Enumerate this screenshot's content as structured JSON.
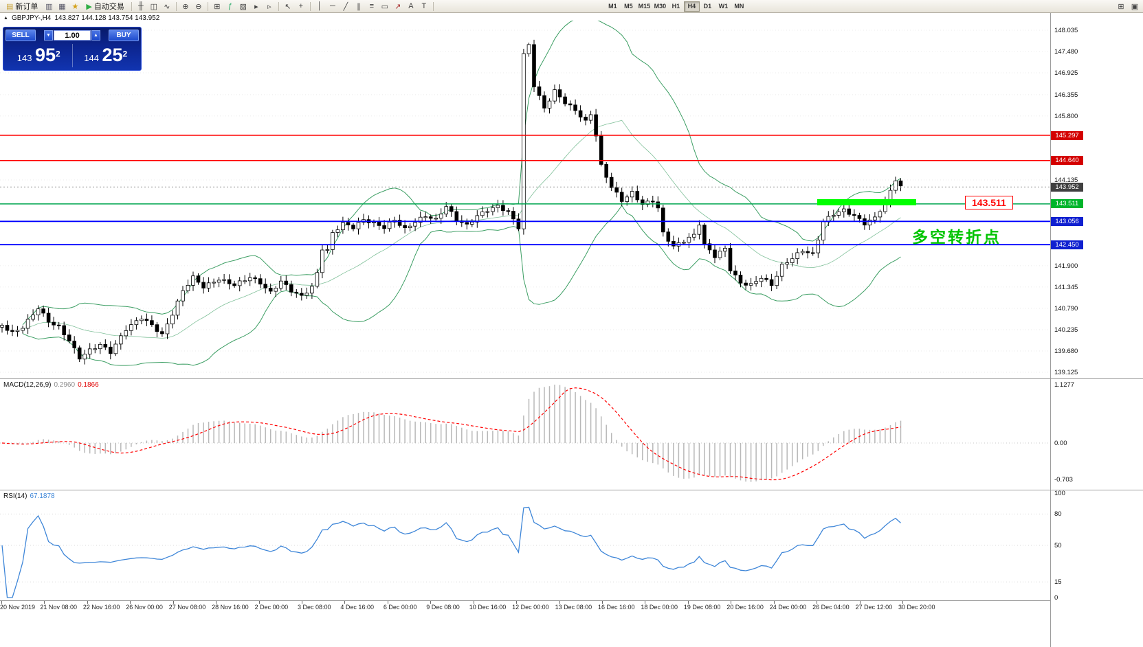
{
  "toolbar": {
    "new_order_label": "新订单",
    "new_order_icon": {
      "name": "new-order-icon",
      "glyph": "▤",
      "color": "#caa53c"
    },
    "autotrade_label": "自动交易",
    "autotrade_icon": {
      "name": "autotrade-play-icon",
      "glyph": "▶",
      "color": "#2eae44"
    },
    "icons_a": [
      {
        "name": "market-watch-icon",
        "glyph": "▥",
        "color": "#556"
      },
      {
        "name": "data-window-icon",
        "glyph": "▦",
        "color": "#556"
      },
      {
        "name": "navigator-icon",
        "glyph": "★",
        "color": "#d4a017"
      }
    ],
    "icons_b": [
      {
        "name": "bar-chart-icon",
        "glyph": "╫"
      },
      {
        "name": "candlestick-chart-icon",
        "glyph": "◫"
      },
      {
        "name": "line-chart-icon",
        "glyph": "∿"
      },
      "sep",
      {
        "name": "zoom-in-icon",
        "glyph": "⊕"
      },
      {
        "name": "zoom-out-icon",
        "glyph": "⊖"
      },
      "sep",
      {
        "name": "tile-windows-icon",
        "glyph": "⊞"
      },
      {
        "name": "indicators-icon",
        "glyph": "ƒ",
        "color": "#2a6"
      },
      {
        "name": "templates-icon",
        "glyph": "▨"
      },
      {
        "name": "auto-scroll-icon",
        "glyph": "▸"
      },
      {
        "name": "chart-shift-icon",
        "glyph": "▹"
      },
      "sep",
      {
        "name": "cursor-icon",
        "glyph": "↖"
      },
      {
        "name": "crosshair-icon",
        "glyph": "+"
      },
      "sep",
      {
        "name": "vertical-line-icon",
        "glyph": "│"
      },
      {
        "name": "horizontal-line-icon",
        "glyph": "─"
      },
      {
        "name": "trendline-icon",
        "glyph": "╱"
      },
      {
        "name": "equidistant-channel-icon",
        "glyph": "∥"
      },
      {
        "name": "fibonacci-icon",
        "glyph": "≡"
      },
      {
        "name": "shapes-icon",
        "glyph": "▭"
      },
      {
        "name": "arrows-icon",
        "glyph": "↗",
        "color": "#a33"
      },
      {
        "name": "text-icon",
        "glyph": "A"
      },
      {
        "name": "text-label-icon",
        "glyph": "T"
      }
    ],
    "timeframes": [
      "M1",
      "M5",
      "M15",
      "M30",
      "H1",
      "H4",
      "D1",
      "W1",
      "MN"
    ],
    "active_timeframe": "H4",
    "icons_right": [
      {
        "name": "new-chart-icon",
        "glyph": "⊞"
      },
      {
        "name": "window-arrange-icon",
        "glyph": "▣"
      }
    ]
  },
  "quote": {
    "symbol": "GBPJPY-,H4",
    "ohlc": "143.827 144.128 143.754 143.952"
  },
  "trade_panel": {
    "sell_label": "SELL",
    "buy_label": "BUY",
    "volume": "1.00",
    "volume_down_glyph": "▼",
    "volume_up_glyph": "▲",
    "sell_price": {
      "prefix": "143",
      "big": "95",
      "sup": "2"
    },
    "buy_price": {
      "prefix": "144",
      "big": "25",
      "sup": "2"
    }
  },
  "chart_data": {
    "type": "candlestick",
    "symbol": "GBPJPY-",
    "timeframe": "H4",
    "candle_count": 175,
    "y_tick_values": [
      148.035,
      147.48,
      146.925,
      146.355,
      145.8,
      144.135,
      141.9,
      141.345,
      140.79,
      140.235,
      139.68,
      139.125
    ],
    "price_badges": [
      {
        "value": 145.297,
        "color": "#d40000"
      },
      {
        "value": 144.64,
        "color": "#d40000"
      },
      {
        "value": 143.952,
        "color": "#404040"
      },
      {
        "value": 143.511,
        "color": "#00b42a"
      },
      {
        "value": 143.056,
        "color": "#1020d0"
      },
      {
        "value": 142.45,
        "color": "#1020d0"
      }
    ],
    "h_lines": [
      {
        "value": 145.297,
        "color": "#ff0000",
        "width": 1.5
      },
      {
        "value": 144.64,
        "color": "#ff0000",
        "width": 1.5
      },
      {
        "value": 143.511,
        "color": "#00a651",
        "width": 1.5
      },
      {
        "value": 143.056,
        "color": "#0000ff",
        "width": 1.8
      },
      {
        "value": 142.45,
        "color": "#0000ff",
        "width": 1.8
      }
    ],
    "current_price": 143.952,
    "highlight_zone": {
      "value": 143.511,
      "x_start_frac": 0.778,
      "x_end_frac": 0.872,
      "color": "#00ff00"
    },
    "annotations": [
      {
        "name": "price-callout",
        "text": "143.511",
        "x": 1404,
        "y": 285,
        "style": "red-box"
      },
      {
        "name": "pivot-note",
        "text": "多空转折点",
        "x": 1327,
        "y": 326,
        "style": "green-text"
      }
    ],
    "close_anchors": [
      [
        0,
        140.35
      ],
      [
        2,
        140.15
      ],
      [
        4,
        140.3
      ],
      [
        7,
        140.8
      ],
      [
        9,
        140.45
      ],
      [
        11,
        140.3
      ],
      [
        13,
        139.95
      ],
      [
        15,
        139.5
      ],
      [
        17,
        139.7
      ],
      [
        19,
        139.85
      ],
      [
        21,
        139.65
      ],
      [
        24,
        140.25
      ],
      [
        27,
        140.55
      ],
      [
        29,
        140.35
      ],
      [
        31,
        140.1
      ],
      [
        33,
        140.65
      ],
      [
        35,
        141.25
      ],
      [
        37,
        141.6
      ],
      [
        39,
        141.35
      ],
      [
        42,
        141.55
      ],
      [
        45,
        141.4
      ],
      [
        48,
        141.6
      ],
      [
        50,
        141.45
      ],
      [
        52,
        141.2
      ],
      [
        54,
        141.5
      ],
      [
        56,
        141.25
      ],
      [
        58,
        141.1
      ],
      [
        60,
        141.35
      ],
      [
        61,
        141.7
      ],
      [
        62,
        142.35
      ],
      [
        63,
        142.3
      ],
      [
        64,
        142.75
      ],
      [
        66,
        143.0
      ],
      [
        68,
        142.9
      ],
      [
        70,
        143.1
      ],
      [
        72,
        143.0
      ],
      [
        74,
        142.9
      ],
      [
        76,
        143.1
      ],
      [
        78,
        142.85
      ],
      [
        80,
        143.05
      ],
      [
        82,
        143.2
      ],
      [
        84,
        143.1
      ],
      [
        86,
        143.45
      ],
      [
        88,
        143.1
      ],
      [
        90,
        142.95
      ],
      [
        92,
        143.2
      ],
      [
        94,
        143.35
      ],
      [
        96,
        143.45
      ],
      [
        98,
        143.3
      ],
      [
        100,
        142.9
      ],
      [
        101,
        147.4
      ],
      [
        102,
        147.65
      ],
      [
        103,
        146.6
      ],
      [
        105,
        146.0
      ],
      [
        107,
        146.45
      ],
      [
        109,
        146.15
      ],
      [
        111,
        145.95
      ],
      [
        113,
        145.65
      ],
      [
        114,
        145.85
      ],
      [
        115,
        145.3
      ],
      [
        116,
        144.5
      ],
      [
        118,
        143.95
      ],
      [
        120,
        143.6
      ],
      [
        122,
        143.8
      ],
      [
        124,
        143.5
      ],
      [
        126,
        143.6
      ],
      [
        127,
        143.4
      ],
      [
        128,
        142.75
      ],
      [
        130,
        142.4
      ],
      [
        132,
        142.55
      ],
      [
        134,
        142.7
      ],
      [
        135,
        143.0
      ],
      [
        136,
        142.45
      ],
      [
        138,
        142.15
      ],
      [
        140,
        142.35
      ],
      [
        141,
        141.8
      ],
      [
        143,
        141.45
      ],
      [
        145,
        141.4
      ],
      [
        147,
        141.6
      ],
      [
        149,
        141.4
      ],
      [
        151,
        141.9
      ],
      [
        153,
        142.1
      ],
      [
        155,
        142.3
      ],
      [
        157,
        142.2
      ],
      [
        158,
        142.6
      ],
      [
        159,
        143.05
      ],
      [
        161,
        143.25
      ],
      [
        163,
        143.35
      ],
      [
        165,
        143.2
      ],
      [
        167,
        143.0
      ],
      [
        169,
        143.15
      ],
      [
        171,
        143.55
      ],
      [
        173,
        144.15
      ],
      [
        174,
        143.95
      ]
    ],
    "bollinger": {
      "period": 20,
      "deviation": 2
    },
    "x_labels": [
      "20 Nov 2019",
      "21 Nov 08:00",
      "22 Nov 16:00",
      "26 Nov 00:00",
      "27 Nov 08:00",
      "28 Nov 16:00",
      "2 Dec 00:00",
      "3 Dec 08:00",
      "4 Dec 16:00",
      "6 Dec 00:00",
      "9 Dec 08:00",
      "10 Dec 16:00",
      "12 Dec 00:00",
      "13 Dec 08:00",
      "16 Dec 16:00",
      "18 Dec 00:00",
      "19 Dec 08:00",
      "20 Dec 16:00",
      "24 Dec 00:00",
      "26 Dec 04:00",
      "27 Dec 12:00",
      "30 Dec 20:00"
    ],
    "macd": {
      "label": "MACD(12,26,9)",
      "value_main": "0.2960",
      "value_signal": "0.1866",
      "fast": 12,
      "slow": 26,
      "signal": 9,
      "y_ticks": [
        {
          "label": "1.1277",
          "value": 1.1277
        },
        {
          "label": "0.00",
          "value": 0
        },
        {
          "label": "-0.703",
          "value": -0.703
        }
      ]
    },
    "rsi": {
      "label": "RSI(14)",
      "value": "67.1878",
      "period": 14,
      "y_ticks": [
        {
          "label": "100",
          "value": 100
        },
        {
          "label": "80",
          "value": 80
        },
        {
          "label": "50",
          "value": 50
        },
        {
          "label": "15",
          "value": 15
        },
        {
          "label": "0",
          "value": 0
        }
      ],
      "levels": [
        80,
        50,
        15
      ]
    },
    "colors": {
      "up": "#ffffff",
      "down": "#000000",
      "candle_outline": "#000000",
      "bollinger": "#3c9e63",
      "macd_hist": "#b8b8b8",
      "macd_signal": "#ff0000",
      "rsi_line": "#3e86d8",
      "grid": "#ebebeb",
      "current_price_line": "#9a9a9a"
    }
  }
}
